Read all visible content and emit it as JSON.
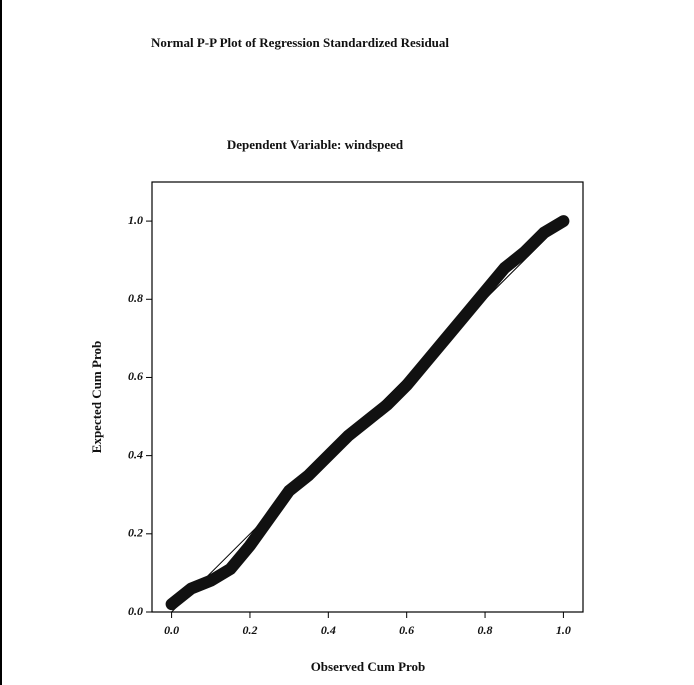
{
  "chart_data": {
    "type": "line",
    "title": "Normal P-P Plot of Regression Standardized Residual",
    "subtitle": "Dependent Variable: windspeed",
    "x_label": "Observed Cum Prob",
    "y_label": "Expected Cum Prob",
    "xlim": [
      -0.05,
      1.05
    ],
    "ylim": [
      0,
      1.1
    ],
    "xticks": [
      {
        "value": 0,
        "label": "0.0"
      },
      0.2,
      0.4,
      0.6,
      0.8,
      {
        "value": 1,
        "label": "1.0"
      }
    ],
    "yticks": [
      {
        "value": 0,
        "label": "0.0"
      },
      0.2,
      0.4,
      0.6,
      0.8,
      {
        "value": 1,
        "label": "1.0"
      }
    ],
    "series": [
      {
        "color": "#000000",
        "width": 1,
        "x": [
          0,
          1
        ],
        "values": [
          0,
          1
        ]
      },
      {
        "color": "#111111",
        "width": 12,
        "x": [
          0,
          0.05,
          0.1,
          0.15,
          0.2,
          0.25,
          0.3,
          0.35,
          0.4,
          0.45,
          0.5,
          0.55,
          0.6,
          0.65,
          0.7,
          0.75,
          0.8,
          0.85,
          0.9,
          0.95,
          1.0
        ],
        "values": [
          0.02,
          0.06,
          0.08,
          0.11,
          0.17,
          0.24,
          0.31,
          0.35,
          0.4,
          0.45,
          0.49,
          0.53,
          0.58,
          0.64,
          0.7,
          0.76,
          0.82,
          0.88,
          0.92,
          0.97,
          1.0
        ]
      }
    ]
  }
}
